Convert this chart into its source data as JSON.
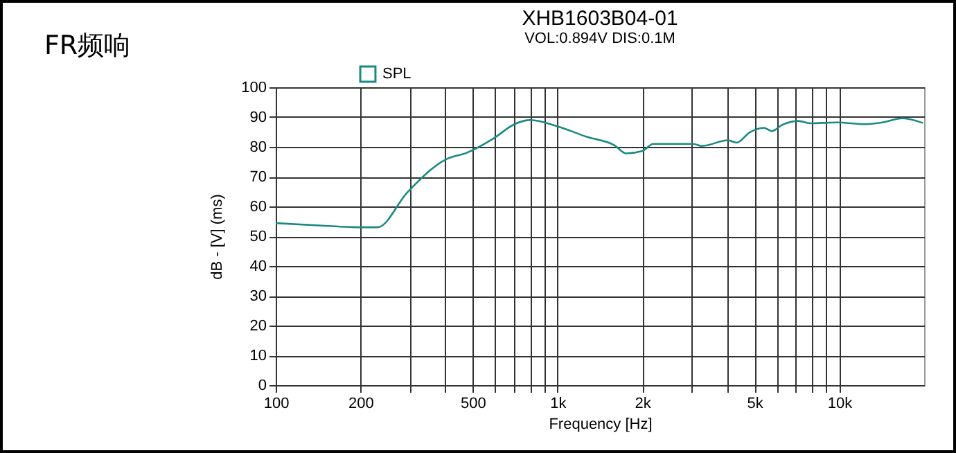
{
  "chart_data": {
    "type": "line",
    "title": "XHB1603B04-01",
    "subtitle": "VOL:0.894V DIS:0.1M",
    "xlabel": "Frequency [Hz]",
    "ylabel": "dB - [V] (ms)",
    "annotations": [
      "FR频响"
    ],
    "log": "x",
    "grid": true,
    "legend": "top left",
    "marker": "none",
    "line_style": "solid",
    "xlim": [
      100,
      20000
    ],
    "ylim": [
      0,
      100
    ],
    "xticks": [
      100,
      200,
      {
        "value": 300,
        "label": null
      },
      {
        "value": 400,
        "label": null
      },
      500,
      {
        "value": 600,
        "label": null
      },
      {
        "value": 700,
        "label": null
      },
      {
        "value": 800,
        "label": null
      },
      {
        "value": 900,
        "label": null
      },
      {
        "value": 1000,
        "label": "1k"
      },
      {
        "value": 2000,
        "label": "2k"
      },
      {
        "value": 3000,
        "label": null
      },
      {
        "value": 4000,
        "label": null
      },
      {
        "value": 5000,
        "label": "5k"
      },
      {
        "value": 6000,
        "label": null
      },
      {
        "value": 7000,
        "label": null
      },
      {
        "value": 8000,
        "label": null
      },
      {
        "value": 9000,
        "label": null
      },
      {
        "value": 10000,
        "label": "10k"
      }
    ],
    "yticks": [
      0,
      10,
      20,
      30,
      40,
      50,
      60,
      70,
      80,
      90,
      100
    ],
    "x": [
      100,
      150,
      200,
      230,
      293,
      402,
      476,
      597,
      700,
      801,
      992,
      1276,
      1594,
      1750,
      2000,
      2185,
      3030,
      3250,
      4030,
      4320,
      4800,
      5400,
      5770,
      6250,
      7160,
      7870,
      9800,
      12300,
      14200,
      16800,
      19800
    ],
    "series": [
      {
        "name": "SPL",
        "color": "#1a8a80",
        "values": [
          54.4,
          53.5,
          53,
          53,
          64.7,
          75.8,
          78,
          83,
          87.5,
          89,
          87,
          83.3,
          80.5,
          77.8,
          78.6,
          81,
          81,
          80.3,
          82.2,
          81.4,
          84.8,
          86.4,
          85.3,
          87.3,
          88.7,
          87.9,
          88.2,
          87.6,
          88.2,
          89.6,
          88
        ]
      }
    ]
  }
}
